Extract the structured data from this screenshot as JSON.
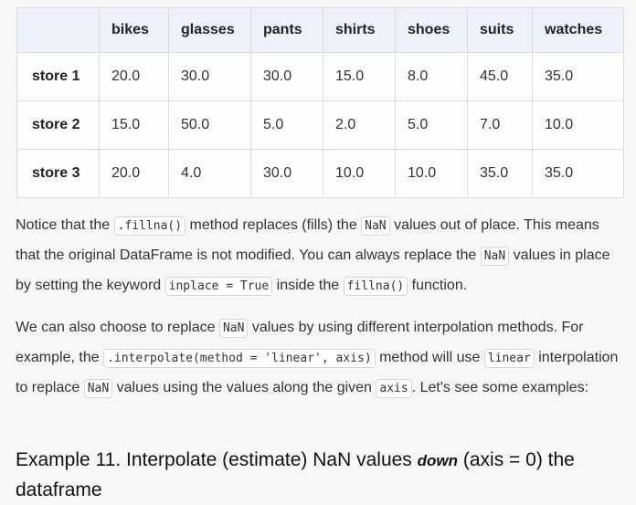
{
  "table": {
    "columns": [
      "bikes",
      "glasses",
      "pants",
      "shirts",
      "shoes",
      "suits",
      "watches"
    ],
    "rows": [
      {
        "label": "store 1",
        "values": [
          "20.0",
          "30.0",
          "30.0",
          "15.0",
          "8.0",
          "45.0",
          "35.0"
        ]
      },
      {
        "label": "store 2",
        "values": [
          "15.0",
          "50.0",
          "5.0",
          "2.0",
          "5.0",
          "7.0",
          "10.0"
        ]
      },
      {
        "label": "store 3",
        "values": [
          "20.0",
          "4.0",
          "30.0",
          "10.0",
          "10.0",
          "35.0",
          "35.0"
        ]
      }
    ]
  },
  "paragraph1": {
    "t1": "Notice that the ",
    "c1": ".fillna()",
    "t2": " method replaces (fills) the ",
    "c2": "NaN",
    "t3": " values out of place. This means that the original DataFrame is not modified. You can always replace the ",
    "c3": "NaN",
    "t4": " values in place by setting the keyword ",
    "c4": "inplace = True",
    "t5": " inside the ",
    "c5": "fillna()",
    "t6": " function."
  },
  "paragraph2": {
    "t1": "We can also choose to replace ",
    "c1": "NaN",
    "t2": " values by using different interpolation methods. For example, the ",
    "c2": ".interpolate(method = 'linear', axis)",
    "t3": " method will use ",
    "c3": "linear",
    "t4": " interpolation to replace ",
    "c4": "NaN",
    "t5": " values using the values along the given ",
    "c5": "axis",
    "t6": ". Let's see some examples:"
  },
  "example_heading": {
    "prefix": "Example 11. Interpolate (estimate) NaN values ",
    "emphasis": "down",
    "suffix": " (axis = 0) the dataframe"
  }
}
